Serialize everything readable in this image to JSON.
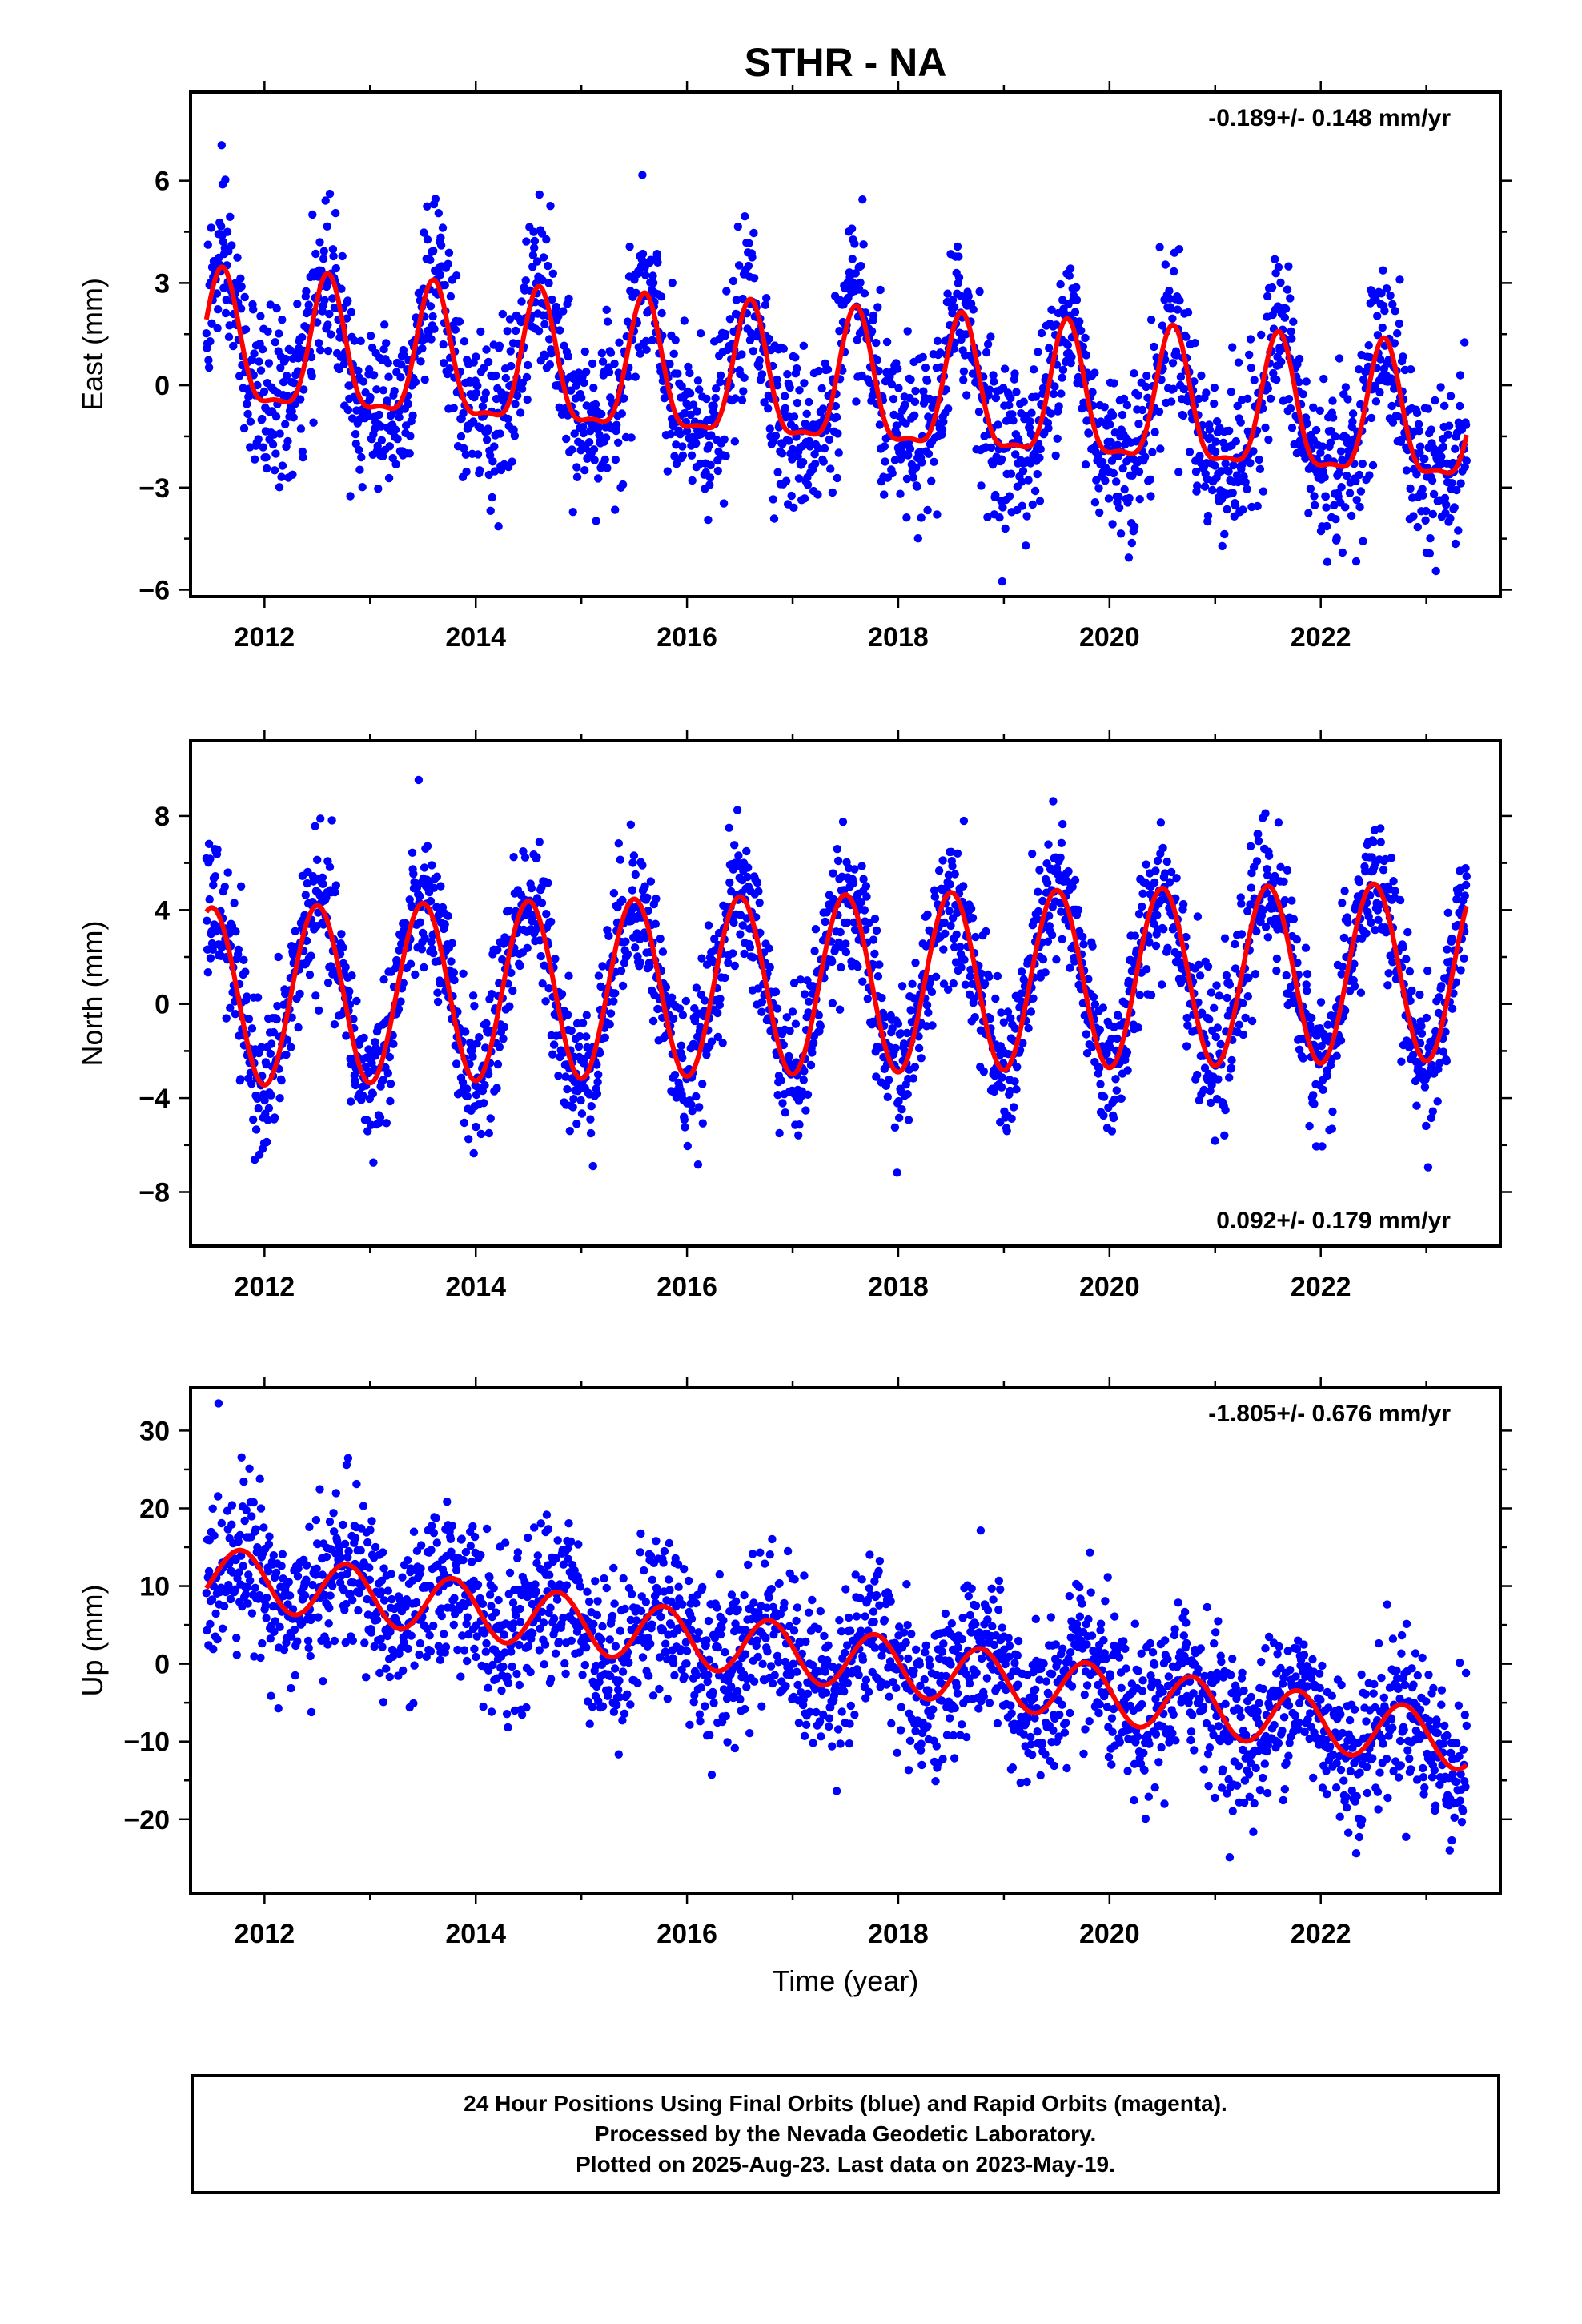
{
  "title": "STHR - NA",
  "footer": {
    "line1": "24 Hour Positions Using Final Orbits (blue) and Rapid Orbits (magenta).",
    "line2": "Processed by the Nevada Geodetic Laboratory.",
    "line3": "Plotted on 2025-Aug-23. Last data on 2023-May-19."
  },
  "colors": {
    "points": "#0000ff",
    "model": "#ff0000",
    "axes": "#000000"
  },
  "chart_data": [
    {
      "type": "scatter",
      "ylabel": "East (mm)",
      "xlabel": "",
      "rate_label": "-0.189+/- 0.148 mm/yr",
      "rate_position": "top-right",
      "xlim": [
        2011.3,
        2023.7
      ],
      "ylim": [
        -6.2,
        8.6
      ],
      "xticks": [
        2012,
        2014,
        2016,
        2018,
        2020,
        2022
      ],
      "yticks": [
        -6,
        -3,
        0,
        3,
        6
      ],
      "ytick_labels": [
        "−6",
        "−3",
        "0",
        "3",
        "6"
      ],
      "data_range": [
        2011.45,
        2023.38
      ],
      "series": [
        {
          "role": "observations",
          "color": "#0000ff",
          "model": {
            "offset": 1.0,
            "trend": -0.189,
            "annual_amp": 1.9,
            "annual_peak_phase": 0.6,
            "semiannual_amp": 0.6,
            "scatter": 1.2
          }
        },
        {
          "role": "fit",
          "color": "#ff0000",
          "model": {
            "offset": 1.0,
            "trend": -0.189,
            "annual_amp": 1.9,
            "annual_peak_phase": 0.6,
            "semiannual_amp": 0.6
          }
        }
      ]
    },
    {
      "type": "scatter",
      "ylabel": "North (mm)",
      "xlabel": "",
      "rate_label": "0.092+/- 0.179 mm/yr",
      "rate_position": "bottom-right",
      "xlim": [
        2011.3,
        2023.7
      ],
      "ylim": [
        -10.3,
        11.2
      ],
      "xticks": [
        2012,
        2014,
        2016,
        2018,
        2020,
        2022
      ],
      "yticks": [
        -8,
        -4,
        0,
        4,
        8
      ],
      "ytick_labels": [
        "−8",
        "−4",
        "0",
        "4",
        "8"
      ],
      "data_range": [
        2011.45,
        2023.38
      ],
      "series": [
        {
          "role": "observations",
          "color": "#0000ff",
          "model": {
            "offset": 0.3,
            "trend": 0.092,
            "annual_amp": 3.8,
            "annual_peak_phase": 0.5,
            "semiannual_amp": 0.0,
            "scatter": 1.5
          }
        },
        {
          "role": "fit",
          "color": "#ff0000",
          "model": {
            "offset": 0.3,
            "trend": 0.092,
            "annual_amp": 3.8,
            "annual_peak_phase": 0.5,
            "semiannual_amp": 0.0
          }
        }
      ]
    },
    {
      "type": "scatter",
      "ylabel": "Up (mm)",
      "xlabel": "Time (year)",
      "rate_label": "-1.805+/- 0.676 mm/yr",
      "rate_position": "top-right",
      "xlim": [
        2011.3,
        2023.7
      ],
      "ylim": [
        -29.5,
        35.5
      ],
      "xticks": [
        2012,
        2014,
        2016,
        2018,
        2020,
        2022
      ],
      "yticks": [
        -20,
        -10,
        0,
        10,
        20,
        30
      ],
      "ytick_labels": [
        "−20",
        "−10",
        "0",
        "10",
        "20",
        "30"
      ],
      "data_range": [
        2011.45,
        2023.38
      ],
      "series": [
        {
          "role": "observations",
          "color": "#0000ff",
          "model": {
            "offset": 11.5,
            "trend": -1.805,
            "annual_amp": 3.7,
            "annual_peak_phase": 0.78,
            "semiannual_amp": 0.0,
            "scatter": 5.0
          }
        },
        {
          "role": "fit",
          "color": "#ff0000",
          "model": {
            "offset": 11.5,
            "trend": -1.805,
            "annual_amp": 3.7,
            "annual_peak_phase": 0.78,
            "semiannual_amp": 0.0
          }
        }
      ]
    }
  ]
}
